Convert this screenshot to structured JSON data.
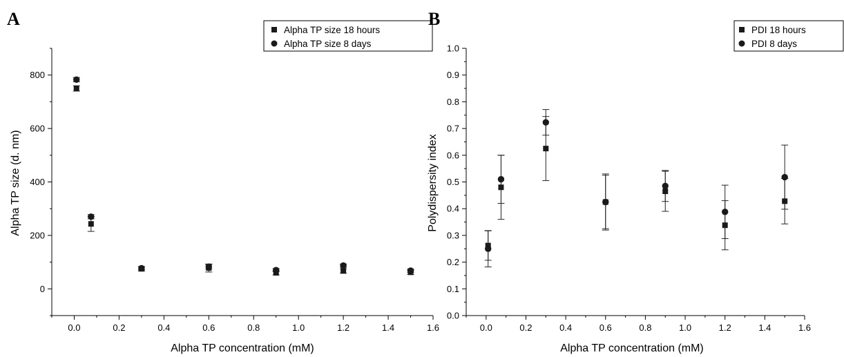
{
  "chart_data": [
    {
      "panel_label": "A",
      "type": "scatter",
      "xlabel": "Alpha TP concentration (mM)",
      "ylabel": "Alpha TP size (d. nm)",
      "xlim": [
        -0.1,
        1.6
      ],
      "ylim": [
        -100,
        900
      ],
      "x_ticks": [
        "0.0",
        "0.2",
        "0.4",
        "0.6",
        "0.8",
        "1.0",
        "1.2",
        "1.4",
        "1.6"
      ],
      "y_ticks": [
        "0",
        "200",
        "400",
        "600",
        "800"
      ],
      "legend_position": "top-right",
      "series": [
        {
          "name": "Alpha TP size 18 hours",
          "marker": "square",
          "x": [
            0.01,
            0.075,
            0.3,
            0.6,
            0.9,
            1.2,
            1.5
          ],
          "y": [
            750,
            243,
            75,
            78,
            60,
            67,
            62
          ],
          "yerr": [
            10,
            28,
            8,
            15,
            8,
            8,
            8
          ]
        },
        {
          "name": "Alpha TP size 8 days",
          "marker": "circle",
          "x": [
            0.01,
            0.075,
            0.3,
            0.6,
            0.9,
            1.2,
            1.5
          ],
          "y": [
            783,
            270,
            77,
            83,
            70,
            87,
            68
          ],
          "yerr": [
            8,
            8,
            6,
            8,
            6,
            6,
            6
          ]
        }
      ]
    },
    {
      "panel_label": "B",
      "type": "scatter",
      "xlabel": "Alpha TP concentration (mM)",
      "ylabel": "Polydispersity index",
      "xlim": [
        -0.1,
        1.6
      ],
      "ylim": [
        0.0,
        1.0
      ],
      "x_ticks": [
        "0.0",
        "0.2",
        "0.4",
        "0.6",
        "0.8",
        "1.0",
        "1.2",
        "1.4",
        "1.6"
      ],
      "y_ticks": [
        "0.0",
        "0.1",
        "0.2",
        "0.3",
        "0.4",
        "0.5",
        "0.6",
        "0.7",
        "0.8",
        "0.9",
        "1.0"
      ],
      "legend_position": "top-right",
      "series": [
        {
          "name": "PDI 18 hours",
          "marker": "square",
          "x": [
            0.01,
            0.075,
            0.3,
            0.6,
            0.9,
            1.2,
            1.5
          ],
          "y": [
            0.262,
            0.48,
            0.625,
            0.425,
            0.465,
            0.338,
            0.428
          ],
          "yerr": [
            0.055,
            0.12,
            0.12,
            0.105,
            0.075,
            0.092,
            0.085
          ]
        },
        {
          "name": "PDI 8 days",
          "marker": "circle",
          "x": [
            0.01,
            0.075,
            0.3,
            0.6,
            0.9,
            1.2,
            1.5
          ],
          "y": [
            0.25,
            0.51,
            0.723,
            0.425,
            0.485,
            0.388,
            0.518
          ],
          "yerr": [
            0.068,
            0.09,
            0.048,
            0.1,
            0.058,
            0.1,
            0.12
          ]
        }
      ]
    }
  ]
}
